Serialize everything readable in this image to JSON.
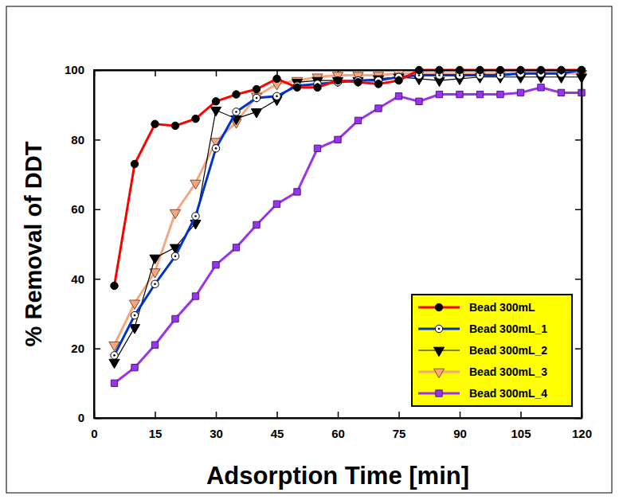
{
  "chart_data": {
    "type": "line",
    "x_label": "Adsorption Time [min]",
    "y_label": "% Removal of DDT",
    "x": [
      5,
      10,
      15,
      20,
      25,
      30,
      35,
      40,
      45,
      50,
      55,
      60,
      65,
      70,
      75,
      80,
      85,
      90,
      95,
      100,
      105,
      110,
      115,
      120
    ],
    "series": [
      {
        "name": "Bead 300mL",
        "color": "#ff0000",
        "marker": "circle",
        "line_style": "thick",
        "values": [
          38,
          73,
          84.5,
          84,
          86,
          91,
          93,
          94.5,
          97.5,
          95,
          95,
          97,
          96.5,
          96,
          97,
          100,
          100,
          100,
          100,
          100,
          100,
          100,
          100,
          100
        ]
      },
      {
        "name": "Bead 300mL_1",
        "color": "#0033cc",
        "marker": "circle-open",
        "line_style": "thick",
        "values": [
          18,
          29.5,
          38.5,
          46.5,
          58,
          77.5,
          88,
          92,
          92.5,
          95.5,
          96,
          96.5,
          97,
          97,
          98,
          98.5,
          98.5,
          98.5,
          98.5,
          98.5,
          99,
          99,
          99,
          100
        ]
      },
      {
        "name": "Bead 300mL_2",
        "color": "#000000",
        "marker": "triangle-down",
        "line_style": "thin",
        "values": [
          16,
          26,
          46,
          49,
          56,
          88.5,
          86,
          88,
          91.5,
          96.5,
          97,
          97,
          97,
          97.5,
          98,
          97.5,
          97,
          97.5,
          98,
          98,
          98,
          98,
          98,
          98
        ]
      },
      {
        "name": "Bead 300mL_3",
        "color": "#f7a77f",
        "marker": "triangle-down-open",
        "line_style": "thick",
        "values": [
          21,
          33,
          42,
          59,
          67.5,
          79.5,
          85,
          92.5,
          96,
          97,
          98,
          98.5,
          98.5,
          98.5,
          99,
          99,
          99,
          99,
          99,
          99,
          99,
          99,
          99,
          99
        ]
      },
      {
        "name": "Bead 300mL_4",
        "color": "#9933ee",
        "marker": "square",
        "line_style": "thick",
        "values": [
          10,
          14.5,
          21,
          28.5,
          35,
          44,
          49,
          55.5,
          61.5,
          65,
          77.5,
          80,
          85.5,
          89,
          92.5,
          91,
          93,
          93,
          93,
          93,
          93.5,
          95,
          93.5,
          93.5
        ]
      }
    ],
    "xlim": [
      0,
      120
    ],
    "xticks": [
      0,
      15,
      30,
      45,
      60,
      75,
      90,
      105,
      120
    ],
    "ylim": [
      0,
      100
    ],
    "yticks": [
      0,
      20,
      40,
      60,
      80,
      100
    ],
    "grid": false,
    "legend": "lower right"
  }
}
